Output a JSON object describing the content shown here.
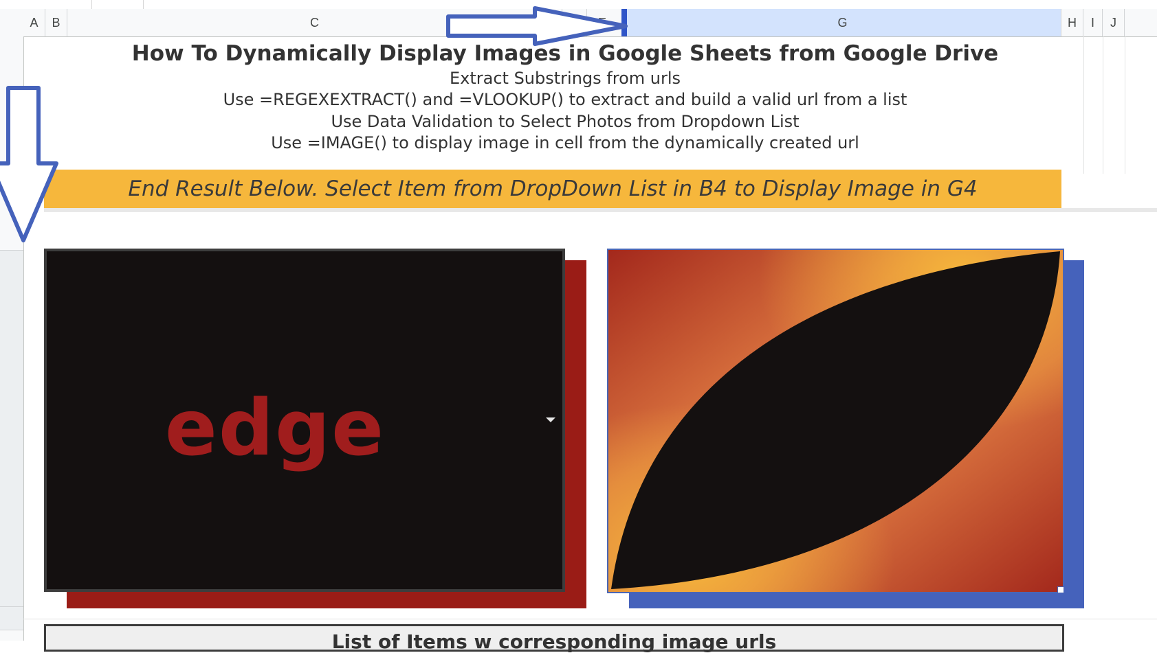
{
  "spreadsheet": {
    "columns": [
      "A",
      "B",
      "C",
      "D",
      "E",
      "G",
      "H",
      "I",
      "J"
    ],
    "selected_column": "G"
  },
  "sheet": {
    "title": "How To Dynamically Display Images in Google Sheets from Google Drive",
    "subtitles": [
      "Extract Substrings from urls",
      "Use =REGEXEXTRACT() and =VLOOKUP() to extract and build a valid url from a list",
      "Use Data Validation to Select Photos from Dropdown List",
      "Use =IMAGE() to display image in cell from the dynamically created url"
    ],
    "banner": "End Result Below. Select Item from DropDown List in B4 to Display Image in G4",
    "dropdown_cell": {
      "value": "edge",
      "icon": "dropdown-arrow-icon"
    },
    "image_cell": {
      "description_icon": "abstract-leaf-image",
      "colors": {
        "dark": "#141010",
        "orange": "#d9723e",
        "gold": "#f6b73c",
        "red": "#a3281c"
      }
    },
    "list_box": {
      "title": "List of Items w corresponding image urls"
    }
  },
  "colors": {
    "banner": "#f6b73c",
    "left_shadow": "#9a1c16",
    "right_shadow": "#4562bb",
    "annotation_arrow": "#4562bb",
    "edge_text": "#a01d1d"
  }
}
